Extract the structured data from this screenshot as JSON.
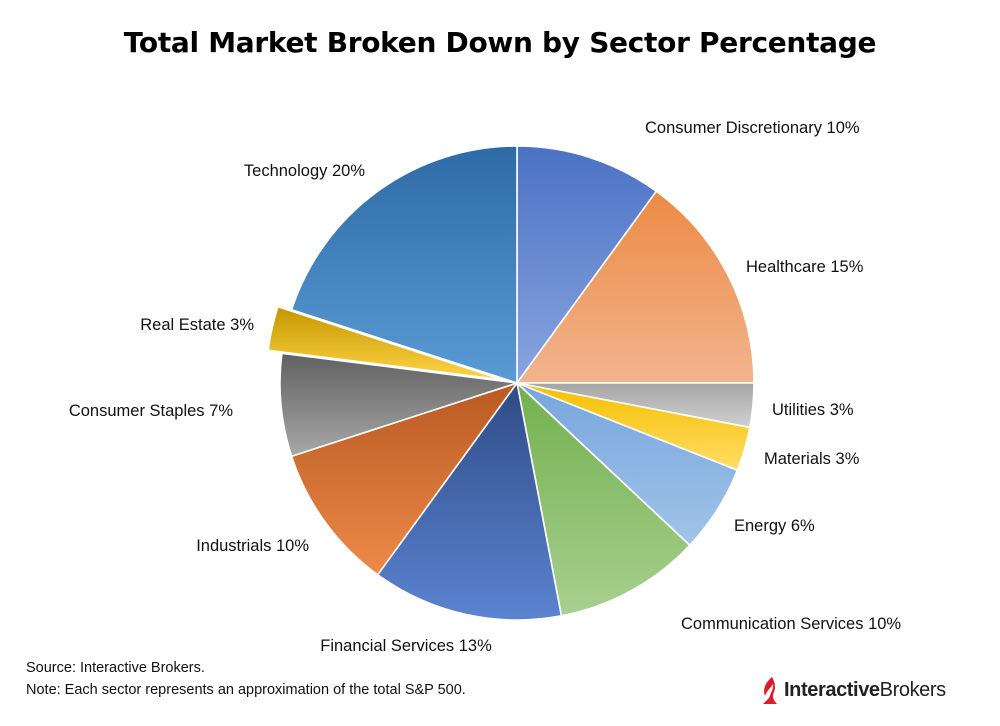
{
  "chart_data": {
    "type": "pie",
    "title": "Total Market Broken Down by Sector Percentage",
    "slices": [
      {
        "label": "Consumer Discretionary 10%",
        "value": 10,
        "color": "#6f8fd6",
        "color_light": "#8aa5df",
        "color_dark": "#4a72c4"
      },
      {
        "label": "Healthcare 15%",
        "value": 15,
        "color": "#f0a070",
        "color_light": "#f2b48e",
        "color_dark": "#ec8a45"
      },
      {
        "label": "Utilities 3%",
        "value": 3,
        "color": "#b5b5b5",
        "color_light": "#d0d0d0",
        "color_dark": "#a5a5a5"
      },
      {
        "label": "Materials 3%",
        "value": 3,
        "color": "#ffd030",
        "color_light": "#ffdd66",
        "color_dark": "#f5bf00"
      },
      {
        "label": "Energy 6%",
        "value": 6,
        "color": "#8fb6e2",
        "color_light": "#a2c3e8",
        "color_dark": "#76a6dd"
      },
      {
        "label": "Communication Services 10%",
        "value": 10,
        "color": "#92c377",
        "color_light": "#a8d08f",
        "color_dark": "#72b04e"
      },
      {
        "label": "Financial Services 13%",
        "value": 13,
        "color": "#3f62a8",
        "color_light": "#5b83d0",
        "color_dark": "#2f4b86"
      },
      {
        "label": "Industrials 10%",
        "value": 10,
        "color": "#e07a3a",
        "color_light": "#ee8a48",
        "color_dark": "#b85a22"
      },
      {
        "label": "Consumer Staples 7%",
        "value": 7,
        "color": "#8a8a8a",
        "color_light": "#a8a8a8",
        "color_dark": "#606060"
      },
      {
        "label": "Real Estate 3%",
        "value": 3,
        "color": "#f2c028",
        "color_light": "#ffd445",
        "color_dark": "#c49600",
        "exploded": true
      },
      {
        "label": "Technology 20%",
        "value": 20,
        "color": "#4a88c4",
        "color_light": "#5b9bd5",
        "color_dark": "#2d6aa6"
      }
    ]
  },
  "notes": {
    "source": "Source: Interactive Brokers.",
    "note": "Note: Each sector represents an approximation of the total S&P 500."
  },
  "brand": {
    "part1": "Interactive",
    "part2": "Brokers",
    "accent_color": "#d81e2a"
  }
}
